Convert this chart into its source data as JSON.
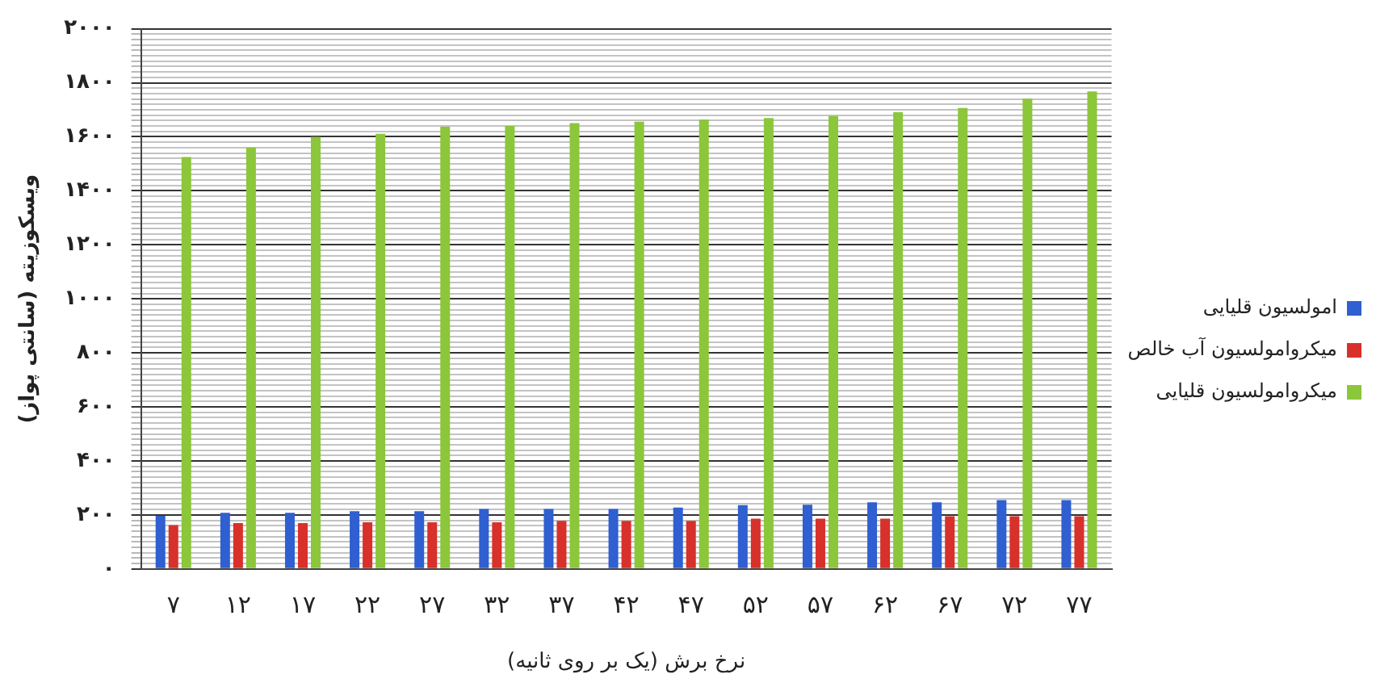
{
  "chart_data": {
    "type": "bar",
    "ylabel": "ویسکوزیته (سانتی پواز)",
    "xlabel": "نرخ برش (یک بر روی ثانیه)",
    "categories": [
      "۷",
      "۱۲",
      "۱۷",
      "۲۲",
      "۲۷",
      "۳۲",
      "۳۷",
      "۴۲",
      "۴۷",
      "۵۲",
      "۵۷",
      "۶۲",
      "۶۷",
      "۷۲",
      "۷۷"
    ],
    "series": [
      {
        "name": "امولسیون قلیایی",
        "color": "#2f5fd0",
        "values": [
          197,
          208,
          208,
          214,
          214,
          222,
          222,
          222,
          227,
          236,
          238,
          247,
          247,
          255,
          255
        ]
      },
      {
        "name": "میکروامولسیون آب خالص",
        "color": "#d8302a",
        "values": [
          162,
          170,
          170,
          173,
          173,
          173,
          178,
          178,
          178,
          186,
          186,
          186,
          195,
          195,
          195
        ]
      },
      {
        "name": "میکروامولسیون قلیایی",
        "color": "#8cc63a",
        "values": [
          1525,
          1560,
          1600,
          1611,
          1637,
          1640,
          1651,
          1656,
          1664,
          1669,
          1677,
          1691,
          1707,
          1741,
          1768
        ]
      }
    ],
    "ylim": [
      0,
      2000
    ],
    "yticks": [
      {
        "value": 0,
        "label": "۰"
      },
      {
        "value": 20,
        "label": null
      },
      {
        "value": 40,
        "label": null
      },
      {
        "value": 60,
        "label": null
      },
      {
        "value": 80,
        "label": null
      },
      {
        "value": 100,
        "label": null
      },
      {
        "value": 120,
        "label": null
      },
      {
        "value": 140,
        "label": null
      },
      {
        "value": 160,
        "label": null
      },
      {
        "value": 180,
        "label": null
      },
      {
        "value": 200,
        "label": "۲۰۰"
      },
      {
        "value": 220,
        "label": null
      },
      {
        "value": 240,
        "label": null
      },
      {
        "value": 260,
        "label": null
      },
      {
        "value": 280,
        "label": null
      },
      {
        "value": 300,
        "label": null
      },
      {
        "value": 320,
        "label": null
      },
      {
        "value": 340,
        "label": null
      },
      {
        "value": 360,
        "label": null
      },
      {
        "value": 380,
        "label": null
      },
      {
        "value": 400,
        "label": "۴۰۰"
      },
      {
        "value": 420,
        "label": null
      },
      {
        "value": 440,
        "label": null
      },
      {
        "value": 460,
        "label": null
      },
      {
        "value": 480,
        "label": null
      },
      {
        "value": 500,
        "label": null
      },
      {
        "value": 520,
        "label": null
      },
      {
        "value": 540,
        "label": null
      },
      {
        "value": 560,
        "label": null
      },
      {
        "value": 580,
        "label": null
      },
      {
        "value": 600,
        "label": "۶۰۰"
      },
      {
        "value": 620,
        "label": null
      },
      {
        "value": 640,
        "label": null
      },
      {
        "value": 660,
        "label": null
      },
      {
        "value": 680,
        "label": null
      },
      {
        "value": 700,
        "label": null
      },
      {
        "value": 720,
        "label": null
      },
      {
        "value": 740,
        "label": null
      },
      {
        "value": 760,
        "label": null
      },
      {
        "value": 780,
        "label": null
      },
      {
        "value": 800,
        "label": "۸۰۰"
      },
      {
        "value": 820,
        "label": null
      },
      {
        "value": 840,
        "label": null
      },
      {
        "value": 860,
        "label": null
      },
      {
        "value": 880,
        "label": null
      },
      {
        "value": 900,
        "label": null
      },
      {
        "value": 920,
        "label": null
      },
      {
        "value": 940,
        "label": null
      },
      {
        "value": 960,
        "label": null
      },
      {
        "value": 980,
        "label": null
      },
      {
        "value": 1000,
        "label": "۱۰۰۰"
      },
      {
        "value": 1020,
        "label": null
      },
      {
        "value": 1040,
        "label": null
      },
      {
        "value": 1060,
        "label": null
      },
      {
        "value": 1080,
        "label": null
      },
      {
        "value": 1100,
        "label": null
      },
      {
        "value": 1120,
        "label": null
      },
      {
        "value": 1140,
        "label": null
      },
      {
        "value": 1160,
        "label": null
      },
      {
        "value": 1180,
        "label": null
      },
      {
        "value": 1200,
        "label": "۱۲۰۰"
      },
      {
        "value": 1220,
        "label": null
      },
      {
        "value": 1240,
        "label": null
      },
      {
        "value": 1260,
        "label": null
      },
      {
        "value": 1280,
        "label": null
      },
      {
        "value": 1300,
        "label": null
      },
      {
        "value": 1320,
        "label": null
      },
      {
        "value": 1340,
        "label": null
      },
      {
        "value": 1360,
        "label": null
      },
      {
        "value": 1380,
        "label": null
      },
      {
        "value": 1400,
        "label": "۱۴۰۰"
      },
      {
        "value": 1420,
        "label": null
      },
      {
        "value": 1440,
        "label": null
      },
      {
        "value": 1460,
        "label": null
      },
      {
        "value": 1480,
        "label": null
      },
      {
        "value": 1500,
        "label": null
      },
      {
        "value": 1520,
        "label": null
      },
      {
        "value": 1540,
        "label": null
      },
      {
        "value": 1560,
        "label": null
      },
      {
        "value": 1580,
        "label": null
      },
      {
        "value": 1600,
        "label": "۱۶۰۰"
      },
      {
        "value": 1620,
        "label": null
      },
      {
        "value": 1640,
        "label": null
      },
      {
        "value": 1660,
        "label": null
      },
      {
        "value": 1680,
        "label": null
      },
      {
        "value": 1700,
        "label": null
      },
      {
        "value": 1720,
        "label": null
      },
      {
        "value": 1740,
        "label": null
      },
      {
        "value": 1760,
        "label": null
      },
      {
        "value": 1780,
        "label": null
      },
      {
        "value": 1800,
        "label": "۱۸۰۰"
      },
      {
        "value": 1820,
        "label": null
      },
      {
        "value": 1840,
        "label": null
      },
      {
        "value": 1860,
        "label": null
      },
      {
        "value": 1880,
        "label": null
      },
      {
        "value": 1900,
        "label": null
      },
      {
        "value": 1920,
        "label": null
      },
      {
        "value": 1940,
        "label": null
      },
      {
        "value": 1960,
        "label": null
      },
      {
        "value": 1980,
        "label": null
      },
      {
        "value": 2000,
        "label": "۲۰۰۰"
      }
    ],
    "grid": "y",
    "legend": "right"
  }
}
